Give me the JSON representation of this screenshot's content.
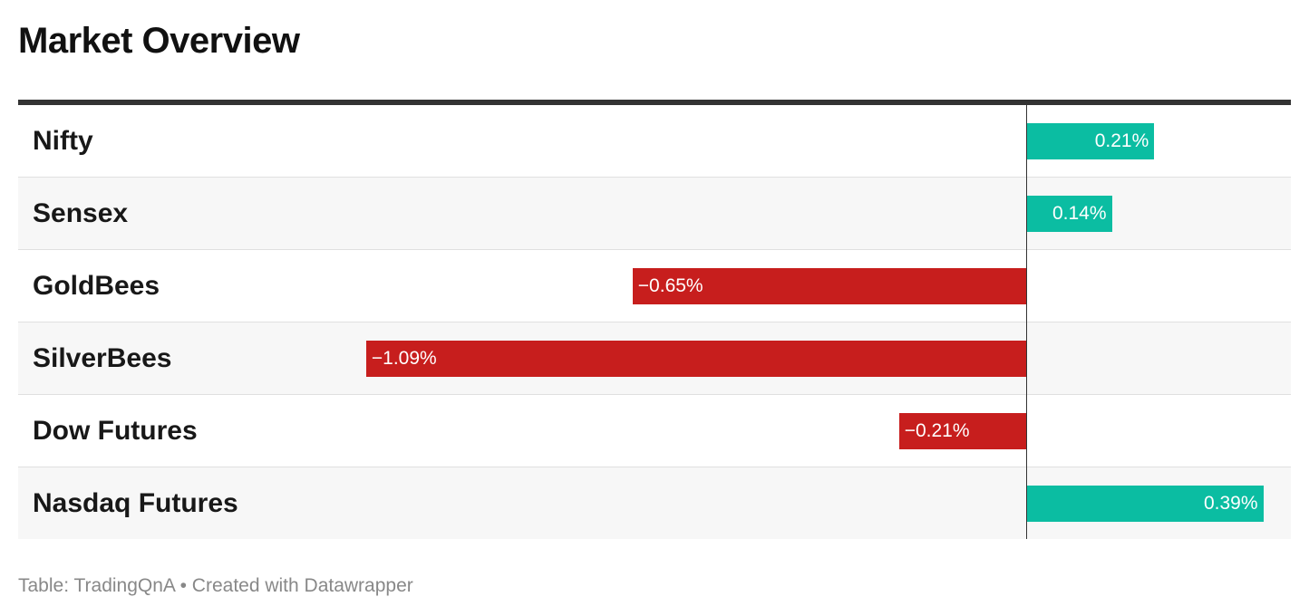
{
  "header": {
    "title": "Market Overview"
  },
  "footer": {
    "text": "Table: TradingQnA • Created with Datawrapper"
  },
  "colors": {
    "positive": "#0bbda2",
    "negative": "#c71e1d",
    "axis": "#333333"
  },
  "chart_data": {
    "type": "bar",
    "orientation": "horizontal",
    "categories": [
      "Nifty",
      "Sensex",
      "GoldBees",
      "SilverBees",
      "Dow Futures",
      "Nasdaq Futures"
    ],
    "values": [
      0.21,
      0.14,
      -0.65,
      -1.09,
      -0.21,
      0.39
    ],
    "value_labels": [
      "0.21%",
      "0.14%",
      "−0.65%",
      "−1.09%",
      "−0.21%",
      "0.39%"
    ],
    "xlim": [
      -1.09,
      0.43
    ],
    "unit": "%",
    "grid": false,
    "legend": "none"
  }
}
